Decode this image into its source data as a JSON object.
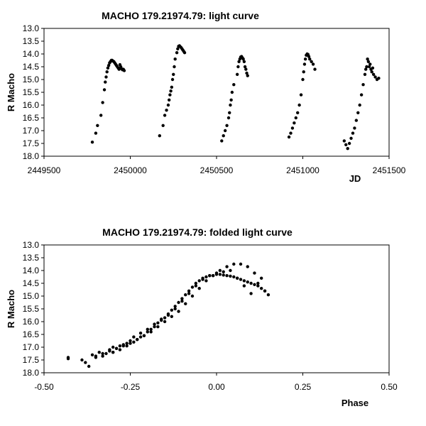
{
  "chart_data": [
    {
      "type": "scatter",
      "title": "MACHO 179.21974.79: light curve",
      "xlabel": "JD",
      "ylabel": "R Macho",
      "xlim": [
        2449500,
        2451500
      ],
      "ylim": [
        13.0,
        18.0
      ],
      "y_inverted": true,
      "x_ticks": [
        "2449500",
        "2450000",
        "2450500",
        "2451000",
        "2451500"
      ],
      "y_ticks": [
        "13.0",
        "13.5",
        "14.0",
        "14.5",
        "15.0",
        "15.5",
        "16.0",
        "16.5",
        "17.0",
        "17.5",
        "18.0"
      ],
      "grid": false,
      "marker_color": "#000000",
      "series": [
        {
          "x": [
            2449780,
            2449800,
            2449810,
            2449830,
            2449840,
            2449850,
            2449855,
            2449860,
            2449865,
            2449870,
            2449875,
            2449880,
            2449885,
            2449890,
            2449895,
            2449900,
            2449905,
            2449910,
            2449915,
            2449920,
            2449925,
            2449930,
            2449935,
            2449940,
            2449945,
            2449950,
            2449955,
            2449960,
            2449965,
            2450170,
            2450190,
            2450200,
            2450210,
            2450220,
            2450225,
            2450230,
            2450235,
            2450240,
            2450245,
            2450250,
            2450255,
            2450260,
            2450270,
            2450275,
            2450280,
            2450285,
            2450290,
            2450295,
            2450300,
            2450305,
            2450310,
            2450315,
            2450530,
            2450540,
            2450550,
            2450560,
            2450570,
            2450575,
            2450580,
            2450585,
            2450590,
            2450600,
            2450620,
            2450625,
            2450630,
            2450635,
            2450640,
            2450645,
            2450650,
            2450655,
            2450660,
            2450665,
            2450670,
            2450675,
            2450680,
            2450920,
            2450930,
            2450940,
            2450950,
            2450960,
            2450970,
            2450980,
            2450990,
            2451000,
            2451005,
            2451010,
            2451015,
            2451020,
            2451025,
            2451030,
            2451035,
            2451040,
            2451050,
            2451060,
            2451070,
            2451240,
            2451250,
            2451260,
            2451270,
            2451280,
            2451290,
            2451300,
            2451310,
            2451320,
            2451330,
            2451340,
            2451350,
            2451360,
            2451365,
            2451370,
            2451375,
            2451380,
            2451385,
            2451390,
            2451395,
            2451400,
            2451405,
            2451410,
            2451420,
            2451430,
            2451440
          ],
          "y": [
            17.45,
            17.1,
            16.8,
            16.4,
            15.9,
            15.4,
            15.1,
            14.9,
            14.7,
            14.55,
            14.45,
            14.35,
            14.3,
            14.25,
            14.25,
            14.28,
            14.3,
            14.35,
            14.4,
            14.45,
            14.5,
            14.55,
            14.6,
            14.42,
            14.5,
            14.58,
            14.62,
            14.6,
            14.65,
            17.2,
            16.8,
            16.4,
            16.2,
            16.0,
            15.8,
            15.6,
            15.45,
            15.3,
            15.0,
            14.8,
            14.5,
            14.2,
            13.95,
            13.8,
            13.7,
            13.68,
            13.72,
            13.75,
            13.8,
            13.85,
            13.9,
            13.95,
            17.4,
            17.2,
            17.0,
            16.8,
            16.5,
            16.3,
            16.0,
            15.8,
            15.5,
            15.2,
            14.8,
            14.5,
            14.3,
            14.2,
            14.12,
            14.1,
            14.15,
            14.2,
            14.3,
            14.5,
            14.6,
            14.75,
            14.85,
            17.25,
            17.1,
            16.9,
            16.7,
            16.5,
            16.3,
            16.0,
            15.6,
            15.0,
            14.7,
            14.4,
            14.2,
            14.05,
            14.0,
            14.02,
            14.1,
            14.2,
            14.3,
            14.4,
            14.6,
            17.4,
            17.55,
            17.7,
            17.5,
            17.3,
            17.1,
            16.9,
            16.6,
            16.3,
            16.0,
            15.6,
            15.2,
            14.8,
            14.6,
            14.5,
            14.2,
            14.3,
            14.5,
            14.4,
            14.6,
            14.7,
            14.55,
            14.8,
            14.9,
            15.0,
            14.95
          ]
        }
      ]
    },
    {
      "type": "scatter",
      "title": "MACHO 179.21974.79: folded light curve",
      "xlabel": "Phase",
      "ylabel": "R Macho",
      "xlim": [
        -0.5,
        0.5
      ],
      "ylim": [
        13.0,
        18.0
      ],
      "y_inverted": true,
      "x_ticks": [
        "-0.50",
        "-0.25",
        "0.00",
        "0.25",
        "0.50"
      ],
      "y_ticks": [
        "13.0",
        "13.5",
        "14.0",
        "14.5",
        "15.0",
        "15.5",
        "16.0",
        "16.5",
        "17.0",
        "17.5",
        "18.0"
      ],
      "grid": false,
      "marker_color": "#000000",
      "series": [
        {
          "x": [
            -0.43,
            -0.43,
            -0.39,
            -0.38,
            -0.37,
            -0.36,
            -0.35,
            -0.34,
            -0.33,
            -0.32,
            -0.31,
            -0.3,
            -0.3,
            -0.29,
            -0.28,
            -0.27,
            -0.26,
            -0.25,
            -0.24,
            -0.23,
            -0.22,
            -0.21,
            -0.2,
            -0.19,
            -0.18,
            -0.17,
            -0.16,
            -0.15,
            -0.14,
            -0.13,
            -0.12,
            -0.11,
            -0.1,
            -0.09,
            -0.08,
            -0.07,
            -0.06,
            -0.05,
            -0.04,
            -0.03,
            -0.02,
            -0.01,
            0.0,
            0.01,
            0.02,
            0.03,
            0.04,
            0.05,
            0.06,
            0.07,
            0.08,
            0.09,
            0.1,
            0.11,
            0.12,
            0.13,
            0.14,
            0.15,
            -0.35,
            -0.33,
            -0.31,
            -0.29,
            -0.27,
            -0.25,
            -0.23,
            -0.21,
            -0.19,
            -0.17,
            -0.15,
            -0.13,
            -0.11,
            -0.09,
            -0.07,
            -0.05,
            -0.03,
            -0.01,
            0.01,
            0.03,
            0.05,
            0.07,
            0.09,
            0.11,
            0.13,
            -0.3,
            -0.28,
            -0.26,
            -0.24,
            -0.22,
            -0.2,
            -0.18,
            -0.16,
            -0.14,
            -0.12,
            -0.1,
            -0.08,
            -0.06,
            -0.04,
            -0.02,
            0.0,
            0.02,
            0.04,
            0.06,
            0.08,
            0.1,
            0.12,
            0.14
          ],
          "y": [
            17.45,
            17.4,
            17.5,
            17.6,
            17.75,
            17.3,
            17.4,
            17.2,
            17.35,
            17.25,
            17.1,
            17.2,
            17.0,
            17.05,
            16.95,
            16.9,
            16.85,
            16.75,
            16.8,
            16.7,
            16.6,
            16.55,
            16.4,
            16.3,
            16.2,
            16.05,
            15.95,
            15.85,
            15.7,
            15.55,
            15.4,
            15.25,
            15.1,
            14.95,
            14.8,
            14.65,
            14.5,
            14.4,
            14.3,
            14.25,
            14.2,
            14.2,
            14.15,
            14.15,
            14.18,
            14.2,
            14.22,
            14.25,
            14.3,
            14.35,
            14.4,
            14.45,
            14.5,
            14.55,
            14.6,
            14.7,
            14.8,
            14.95,
            17.35,
            17.25,
            17.15,
            17.05,
            16.95,
            16.85,
            16.7,
            16.55,
            16.4,
            16.2,
            16.0,
            15.8,
            15.6,
            15.3,
            15.0,
            14.7,
            14.4,
            14.2,
            14.0,
            13.85,
            13.75,
            13.75,
            13.85,
            14.1,
            14.3,
            17.2,
            17.1,
            16.95,
            16.6,
            16.45,
            16.3,
            16.1,
            15.9,
            15.75,
            15.5,
            15.2,
            14.9,
            14.6,
            14.35,
            14.2,
            14.1,
            14.05,
            14.0,
            14.3,
            14.6,
            14.9,
            14.5,
            14.8
          ]
        }
      ]
    }
  ]
}
